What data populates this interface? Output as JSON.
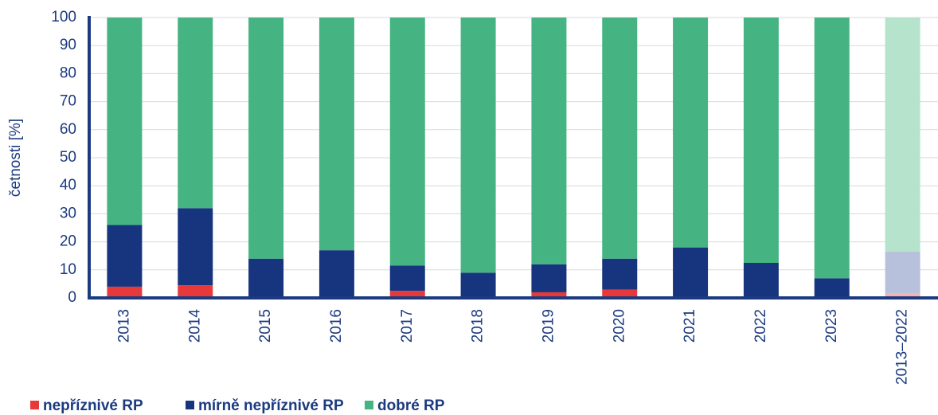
{
  "chart_data": {
    "type": "stacked_bar",
    "y_label": "četnosti [%]",
    "categories": [
      "2013",
      "2014",
      "2015",
      "2016",
      "2017",
      "2018",
      "2019",
      "2020",
      "2021",
      "2022",
      "2023",
      "2013–2022"
    ],
    "series": [
      {
        "name": "nepříznivé RP",
        "color": "#e8393a",
        "colors": [
          "#e8393a",
          "#e8393a",
          "#e8393a",
          "#e8393a",
          "#e8393a",
          "#e8393a",
          "#e8393a",
          "#e8393a",
          "#e8393a",
          "#e8393a",
          "#e8393a",
          "#f4b3b0"
        ],
        "values": [
          4,
          4.5,
          0,
          0,
          2.5,
          0,
          2,
          3,
          0,
          0,
          0,
          1.5
        ]
      },
      {
        "name": "mírně nepříznivé RP",
        "color": "#17357f",
        "colors": [
          "#17357f",
          "#17357f",
          "#17357f",
          "#17357f",
          "#17357f",
          "#17357f",
          "#17357f",
          "#17357f",
          "#17357f",
          "#17357f",
          "#17357f",
          "#b7c1dc"
        ],
        "values": [
          22,
          27.5,
          14,
          17,
          9,
          9,
          10,
          11,
          18,
          12.5,
          7,
          15
        ]
      },
      {
        "name": "dobré RP",
        "color": "#45b482",
        "colors": [
          "#45b482",
          "#45b482",
          "#45b482",
          "#45b482",
          "#45b482",
          "#45b482",
          "#45b482",
          "#45b482",
          "#45b482",
          "#45b482",
          "#45b482",
          "#b6e3cc"
        ],
        "values": [
          74,
          68,
          86,
          83,
          88.5,
          91,
          88,
          86,
          82,
          87.5,
          93,
          83.5
        ]
      }
    ],
    "ylim": [
      0,
      100
    ],
    "yticks": [
      0,
      10,
      20,
      30,
      40,
      50,
      60,
      70,
      80,
      90,
      100
    ],
    "grid": true
  }
}
